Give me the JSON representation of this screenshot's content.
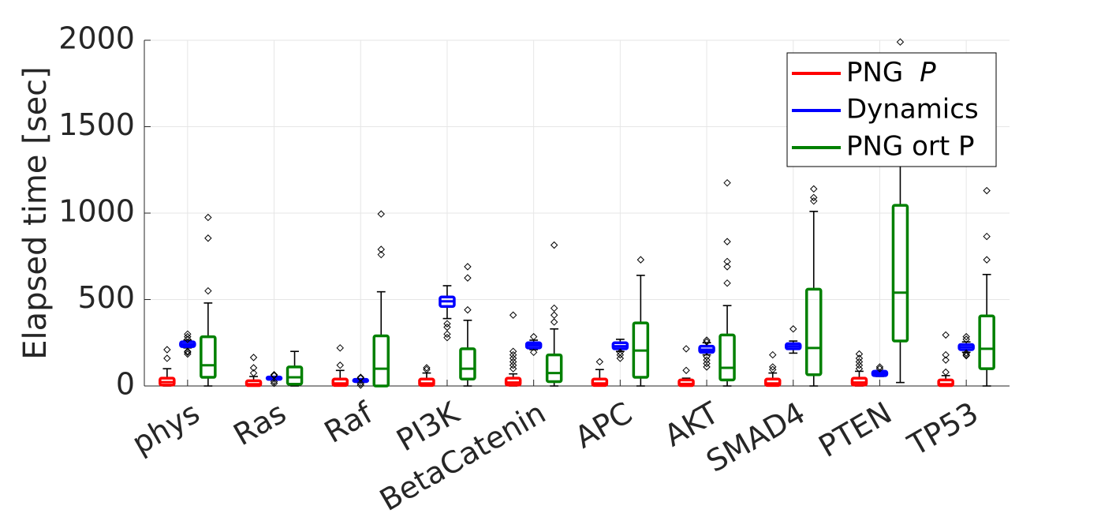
{
  "chart_data": {
    "type": "boxplot",
    "title": "",
    "xlabel": "",
    "ylabel": "Elapsed time [sec]",
    "ylim": [
      0,
      2000
    ],
    "yticks": [
      0,
      500,
      1000,
      1500,
      2000
    ],
    "grid": true,
    "legend_position": "top-right",
    "categories": [
      "phys",
      "Ras",
      "Raf",
      "PI3K",
      "BetaCatenin",
      "APC",
      "AKT",
      "SMAD4",
      "PTEN",
      "TP53"
    ],
    "series": [
      {
        "name": "PNG  P",
        "legend_parts": [
          "PNG  ",
          "P"
        ],
        "color": "#ff0000",
        "boxes": [
          {
            "q1": 5,
            "median": 22,
            "q3": 45,
            "whisker_low": 0,
            "whisker_high": 100,
            "outliers": [
              160,
              210
            ]
          },
          {
            "q1": 2,
            "median": 10,
            "q3": 30,
            "whisker_low": 0,
            "whisker_high": 55,
            "outliers": [
              75,
              105,
              165
            ]
          },
          {
            "q1": 3,
            "median": 15,
            "q3": 40,
            "whisker_low": 0,
            "whisker_high": 90,
            "outliers": [
              120,
              220
            ]
          },
          {
            "q1": 3,
            "median": 15,
            "q3": 40,
            "whisker_low": 0,
            "whisker_high": 75,
            "outliers": [
              95,
              105
            ]
          },
          {
            "q1": 5,
            "median": 20,
            "q3": 45,
            "whisker_low": 0,
            "whisker_high": 70,
            "outliers": [
              100,
              120,
              140,
              160,
              180,
              200,
              410
            ]
          },
          {
            "q1": 3,
            "median": 15,
            "q3": 40,
            "whisker_low": 0,
            "whisker_high": 95,
            "outliers": [
              140
            ]
          },
          {
            "q1": 2,
            "median": 12,
            "q3": 35,
            "whisker_low": 0,
            "whisker_high": 45,
            "outliers": [
              90,
              215
            ]
          },
          {
            "q1": 3,
            "median": 15,
            "q3": 40,
            "whisker_low": 0,
            "whisker_high": 75,
            "outliers": [
              95,
              110,
              180
            ]
          },
          {
            "q1": 5,
            "median": 20,
            "q3": 45,
            "whisker_low": 0,
            "whisker_high": 85,
            "outliers": [
              100,
              120,
              140,
              160,
              185
            ]
          },
          {
            "q1": 2,
            "median": 10,
            "q3": 35,
            "whisker_low": 0,
            "whisker_high": 60,
            "outliers": [
              80,
              150,
              180,
              295
            ]
          }
        ]
      },
      {
        "name": "Dynamics",
        "color": "#0000ff",
        "boxes": [
          {
            "q1": 228,
            "median": 240,
            "q3": 255,
            "whisker_low": 220,
            "whisker_high": 265,
            "outliers": [
              185,
              195,
              200,
              270,
              285,
              300
            ]
          },
          {
            "q1": 38,
            "median": 45,
            "q3": 52,
            "whisker_low": 35,
            "whisker_high": 55,
            "outliers": [
              15,
              25,
              60,
              65
            ]
          },
          {
            "q1": 25,
            "median": 32,
            "q3": 38,
            "whisker_low": 22,
            "whisker_high": 42,
            "outliers": [
              5,
              15,
              45,
              50
            ]
          },
          {
            "q1": 460,
            "median": 490,
            "q3": 515,
            "whisker_low": 390,
            "whisker_high": 580,
            "outliers": [
              280,
              300,
              340,
              360
            ]
          },
          {
            "q1": 220,
            "median": 235,
            "q3": 250,
            "whisker_low": 210,
            "whisker_high": 265,
            "outliers": [
              195,
              285
            ]
          },
          {
            "q1": 215,
            "median": 230,
            "q3": 250,
            "whisker_low": 200,
            "whisker_high": 270,
            "outliers": [
              160,
              180,
              195
            ]
          },
          {
            "q1": 195,
            "median": 210,
            "q3": 230,
            "whisker_low": 180,
            "whisker_high": 250,
            "outliers": [
              110,
              130,
              150,
              170,
              255,
              265
            ]
          },
          {
            "q1": 215,
            "median": 230,
            "q3": 245,
            "whisker_low": 190,
            "whisker_high": 260,
            "outliers": [
              330
            ]
          },
          {
            "q1": 60,
            "median": 72,
            "q3": 85,
            "whisker_low": 55,
            "whisker_high": 90,
            "outliers": [
              100,
              110
            ]
          },
          {
            "q1": 210,
            "median": 225,
            "q3": 240,
            "whisker_low": 195,
            "whisker_high": 255,
            "outliers": [
              175,
              180,
              190,
              270,
              285
            ]
          }
        ]
      },
      {
        "name": "PNG ort P",
        "color": "#008000",
        "boxes": [
          {
            "q1": 50,
            "median": 120,
            "q3": 285,
            "whisker_low": 0,
            "whisker_high": 480,
            "outliers": [
              550,
              855,
              975
            ]
          },
          {
            "q1": 10,
            "median": 50,
            "q3": 110,
            "whisker_low": 0,
            "whisker_high": 200,
            "outliers": []
          },
          {
            "q1": 0,
            "median": 100,
            "q3": 290,
            "whisker_low": 0,
            "whisker_high": 545,
            "outliers": [
              760,
              790,
              995
            ]
          },
          {
            "q1": 40,
            "median": 100,
            "q3": 215,
            "whisker_low": 0,
            "whisker_high": 380,
            "outliers": [
              440,
              625,
              690
            ]
          },
          {
            "q1": 25,
            "median": 75,
            "q3": 180,
            "whisker_low": 0,
            "whisker_high": 330,
            "outliers": [
              370,
              410,
              450,
              815
            ]
          },
          {
            "q1": 50,
            "median": 205,
            "q3": 365,
            "whisker_low": 0,
            "whisker_high": 640,
            "outliers": [
              730
            ]
          },
          {
            "q1": 35,
            "median": 105,
            "q3": 295,
            "whisker_low": 0,
            "whisker_high": 465,
            "outliers": [
              595,
              690,
              720,
              835,
              1175
            ]
          },
          {
            "q1": 65,
            "median": 220,
            "q3": 560,
            "whisker_low": 0,
            "whisker_high": 1010,
            "outliers": [
              1070,
              1090,
              1140
            ]
          },
          {
            "q1": 260,
            "median": 540,
            "q3": 1045,
            "whisker_low": 20,
            "whisker_high": 1560,
            "outliers": [
              1990
            ]
          },
          {
            "q1": 100,
            "median": 215,
            "q3": 405,
            "whisker_low": 0,
            "whisker_high": 645,
            "outliers": [
              730,
              865,
              1130
            ]
          }
        ]
      }
    ]
  }
}
